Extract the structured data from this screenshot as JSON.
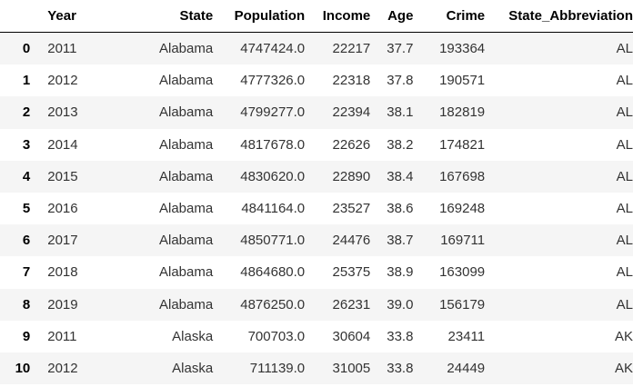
{
  "columns": {
    "index": "",
    "year": "Year",
    "state": "State",
    "population": "Population",
    "income": "Income",
    "age": "Age",
    "crime": "Crime",
    "abbr": "State_Abbreviation"
  },
  "rows": [
    {
      "idx": "0",
      "year": "2011",
      "state": "Alabama",
      "population": "4747424.0",
      "income": "22217",
      "age": "37.7",
      "crime": "193364",
      "abbr": "AL"
    },
    {
      "idx": "1",
      "year": "2012",
      "state": "Alabama",
      "population": "4777326.0",
      "income": "22318",
      "age": "37.8",
      "crime": "190571",
      "abbr": "AL"
    },
    {
      "idx": "2",
      "year": "2013",
      "state": "Alabama",
      "population": "4799277.0",
      "income": "22394",
      "age": "38.1",
      "crime": "182819",
      "abbr": "AL"
    },
    {
      "idx": "3",
      "year": "2014",
      "state": "Alabama",
      "population": "4817678.0",
      "income": "22626",
      "age": "38.2",
      "crime": "174821",
      "abbr": "AL"
    },
    {
      "idx": "4",
      "year": "2015",
      "state": "Alabama",
      "population": "4830620.0",
      "income": "22890",
      "age": "38.4",
      "crime": "167698",
      "abbr": "AL"
    },
    {
      "idx": "5",
      "year": "2016",
      "state": "Alabama",
      "population": "4841164.0",
      "income": "23527",
      "age": "38.6",
      "crime": "169248",
      "abbr": "AL"
    },
    {
      "idx": "6",
      "year": "2017",
      "state": "Alabama",
      "population": "4850771.0",
      "income": "24476",
      "age": "38.7",
      "crime": "169711",
      "abbr": "AL"
    },
    {
      "idx": "7",
      "year": "2018",
      "state": "Alabama",
      "population": "4864680.0",
      "income": "25375",
      "age": "38.9",
      "crime": "163099",
      "abbr": "AL"
    },
    {
      "idx": "8",
      "year": "2019",
      "state": "Alabama",
      "population": "4876250.0",
      "income": "26231",
      "age": "39.0",
      "crime": "156179",
      "abbr": "AL"
    },
    {
      "idx": "9",
      "year": "2011",
      "state": "Alaska",
      "population": "700703.0",
      "income": "30604",
      "age": "33.8",
      "crime": "23411",
      "abbr": "AK"
    },
    {
      "idx": "10",
      "year": "2012",
      "state": "Alaska",
      "population": "711139.0",
      "income": "31005",
      "age": "33.8",
      "crime": "24449",
      "abbr": "AK"
    }
  ]
}
